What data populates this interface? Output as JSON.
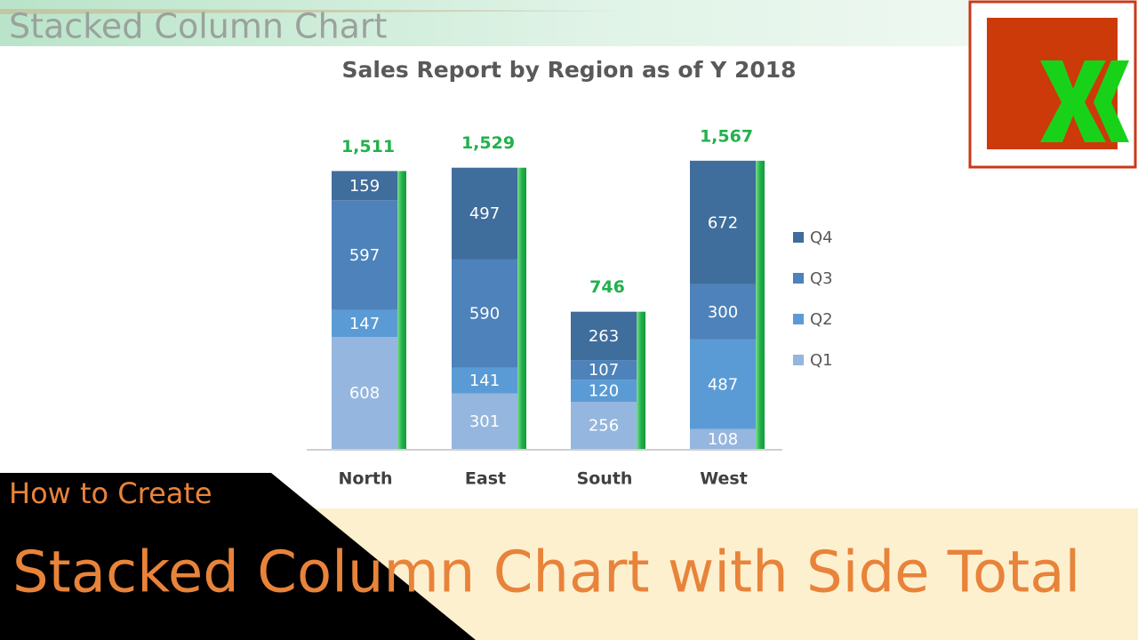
{
  "header": {
    "title": "Stacked Column Chart"
  },
  "chart_data": {
    "type": "stacked_bar",
    "title": "Sales Report by Region as of Y 2018",
    "categories": [
      "North",
      "East",
      "South",
      "West"
    ],
    "series": [
      {
        "name": "Q1",
        "color": "#95b6de",
        "values": [
          608,
          301,
          256,
          108
        ]
      },
      {
        "name": "Q2",
        "color": "#5b9bd5",
        "values": [
          147,
          141,
          120,
          487
        ]
      },
      {
        "name": "Q3",
        "color": "#4d82ba",
        "values": [
          597,
          590,
          107,
          300
        ]
      },
      {
        "name": "Q4",
        "color": "#3f6d9c",
        "values": [
          159,
          497,
          263,
          672
        ]
      }
    ],
    "totals": {
      "values": [
        1511,
        1529,
        746,
        1567
      ],
      "value_labels": [
        "1,511",
        "1,529",
        "746",
        "1,567"
      ],
      "color": "#22b14c"
    },
    "ylim": [
      0,
      1600
    ],
    "legend": "right"
  },
  "banner": {
    "subtitle": "How to Create",
    "title": "Stacked Column Chart with Side Total"
  }
}
